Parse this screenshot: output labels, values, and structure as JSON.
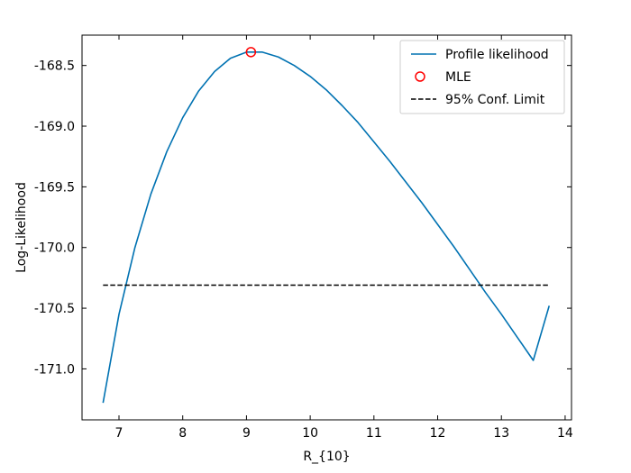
{
  "chart_data": {
    "type": "line",
    "title": "",
    "xlabel": "R_{10}",
    "ylabel": "Log-Likelihood",
    "xlim": [
      6.42,
      14.1
    ],
    "ylim": [
      -171.42,
      -168.25
    ],
    "xticks": [
      7,
      8,
      9,
      10,
      11,
      12,
      13,
      14
    ],
    "yticks": [
      -171.0,
      -170.5,
      -170.0,
      -169.5,
      -169.0,
      -168.5
    ],
    "ytick_labels": [
      "-171.0",
      "-170.5",
      "-170.0",
      "-169.5",
      "-169.0",
      "-168.5"
    ],
    "grid": false,
    "legend_position": "top-right",
    "series": [
      {
        "name": "Profile likelihood",
        "kind": "line",
        "color": "#0072b2",
        "x": [
          6.75,
          7.0,
          7.25,
          7.5,
          7.75,
          8.0,
          8.25,
          8.5,
          8.75,
          9.0,
          9.25,
          9.5,
          9.75,
          10.0,
          10.25,
          10.5,
          10.75,
          11.0,
          11.25,
          11.5,
          11.75,
          12.0,
          12.25,
          12.5,
          12.75,
          13.0,
          13.25,
          13.5,
          13.75
        ],
        "y": [
          -171.28,
          -170.55,
          -170.0,
          -169.56,
          -169.21,
          -168.93,
          -168.71,
          -168.55,
          -168.44,
          -168.39,
          -168.39,
          -168.43,
          -168.5,
          -168.59,
          -168.7,
          -168.83,
          -168.97,
          -169.13,
          -169.29,
          -169.46,
          -169.63,
          -169.81,
          -169.99,
          -170.18,
          -170.37,
          -170.55,
          -170.74,
          -170.93,
          -170.48
        ]
      },
      {
        "name": "MLE",
        "kind": "scatter",
        "color": "#ff0000",
        "x": [
          9.07
        ],
        "y": [
          -168.39
        ]
      },
      {
        "name": "95% Conf. Limit",
        "kind": "hline",
        "color": "#000000",
        "x": [
          6.75,
          13.75
        ],
        "y": [
          -170.31,
          -170.31
        ]
      }
    ]
  }
}
